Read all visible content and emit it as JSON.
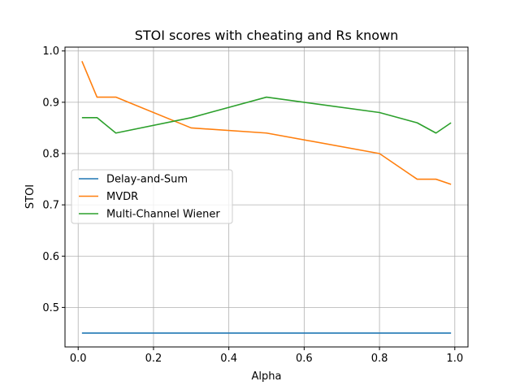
{
  "chart_data": {
    "type": "line",
    "title": "STOI scores with cheating and Rs known",
    "xlabel": "Alpha",
    "ylabel": "STOI",
    "xlim": [
      -0.035,
      1.035
    ],
    "ylim": [
      0.423,
      1.0075
    ],
    "xticks": [
      0.0,
      0.2,
      0.4,
      0.6,
      0.8,
      1.0
    ],
    "xtick_labels": [
      "0.0",
      "0.2",
      "0.4",
      "0.6",
      "0.8",
      "1.0"
    ],
    "yticks": [
      0.5,
      0.6,
      0.7,
      0.8,
      0.9,
      1.0
    ],
    "ytick_labels": [
      "0.5",
      "0.6",
      "0.7",
      "0.8",
      "0.9",
      "1.0"
    ],
    "grid": true,
    "legend_position": "center-left",
    "series": [
      {
        "name": "Delay-and-Sum",
        "color": "#1f77b4",
        "x": [
          0.01,
          0.05,
          0.1,
          0.3,
          0.5,
          0.8,
          0.9,
          0.95,
          0.99
        ],
        "y": [
          0.45,
          0.45,
          0.45,
          0.45,
          0.45,
          0.45,
          0.45,
          0.45,
          0.45
        ]
      },
      {
        "name": "MVDR",
        "color": "#ff7f0e",
        "x": [
          0.01,
          0.05,
          0.1,
          0.3,
          0.5,
          0.8,
          0.9,
          0.95,
          0.99
        ],
        "y": [
          0.98,
          0.91,
          0.91,
          0.85,
          0.84,
          0.8,
          0.75,
          0.75,
          0.74
        ]
      },
      {
        "name": "Multi-Channel Wiener",
        "color": "#2ca02c",
        "x": [
          0.01,
          0.05,
          0.1,
          0.3,
          0.5,
          0.8,
          0.9,
          0.95,
          0.99
        ],
        "y": [
          0.87,
          0.87,
          0.84,
          0.87,
          0.91,
          0.88,
          0.86,
          0.84,
          0.86
        ]
      }
    ]
  }
}
